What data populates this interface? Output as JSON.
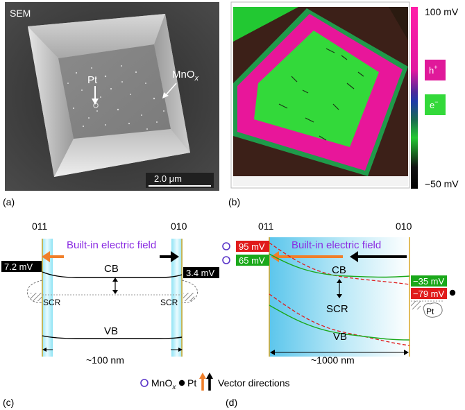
{
  "panel_a": {
    "label": "(a)",
    "sem": "SEM",
    "pt": "Pt",
    "mnox_base": "MnO",
    "mnox_sub": "x",
    "scalebar": "2.0 μm"
  },
  "panel_b": {
    "label": "(b)",
    "top_value": "100 mV",
    "bottom_value": "−50 mV",
    "hole_base": "h",
    "hole_sup": "+",
    "electron_base": "e",
    "electron_sup": "−",
    "colors": {
      "hole": "#e0199a",
      "electron": "#33d93a"
    }
  },
  "panel_c": {
    "label": "(c)",
    "facet_left": "011",
    "facet_right": "010",
    "field": "Built-in electric field",
    "left_value": "7.2 mV",
    "right_value": "3.4 mV",
    "cb": "CB",
    "vb": "VB",
    "scr_left": "SCR",
    "scr_right": "SCR",
    "width": "~100 nm"
  },
  "panel_d": {
    "label": "(d)",
    "facet_left": "011",
    "facet_right": "010",
    "field": "Built-in electric field",
    "v1": "95 mV",
    "v2": "65 mV",
    "v3": "−35 mV",
    "v4": "−79 mV",
    "cb": "CB",
    "scr": "SCR",
    "vb": "VB",
    "pt": "Pt",
    "width": "~1000 nm"
  },
  "legend": {
    "mnox_base": "MnO",
    "mnox_sub": "x",
    "pt": "Pt",
    "vectors": "Vector directions",
    "colors": {
      "orange": "#f07f2a",
      "black": "#000000",
      "mnox_circle": "#5a35c8"
    }
  }
}
